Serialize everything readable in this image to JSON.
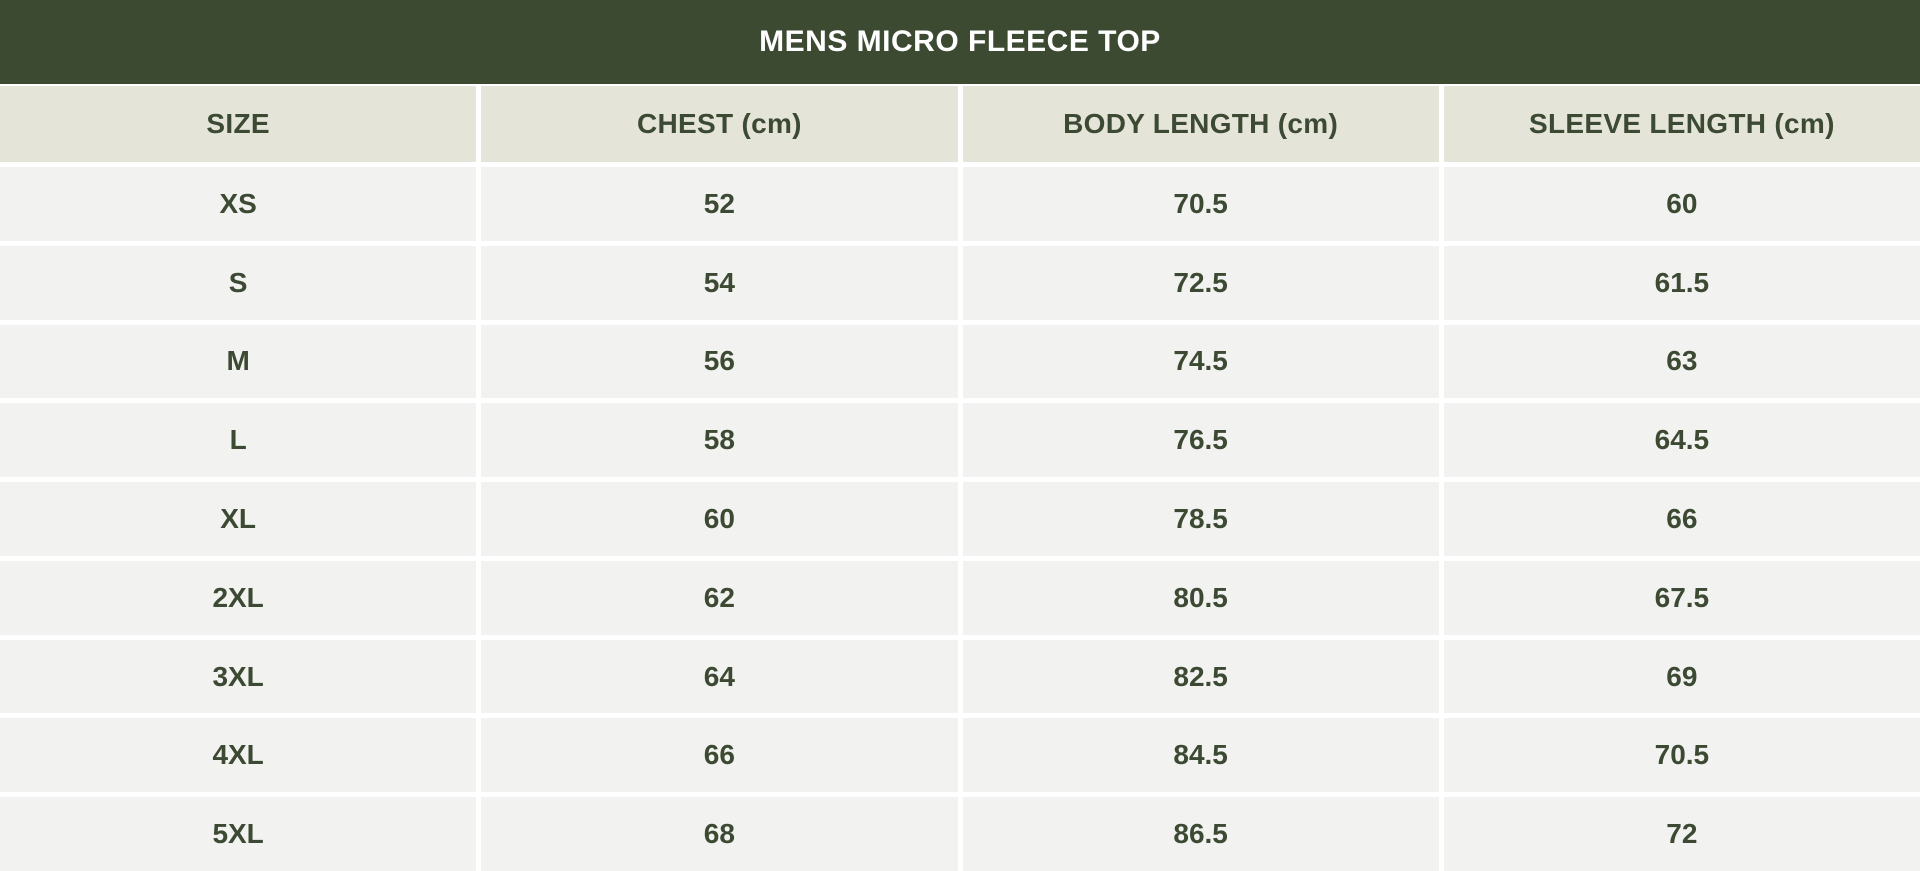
{
  "chart_data": {
    "type": "table",
    "title": "MENS MICRO FLEECE TOP",
    "columns": [
      "SIZE",
      "CHEST (cm)",
      "BODY LENGTH (cm)",
      "SLEEVE LENGTH (cm)"
    ],
    "rows": [
      [
        "XS",
        "52",
        "70.5",
        "60"
      ],
      [
        "S",
        "54",
        "72.5",
        "61.5"
      ],
      [
        "M",
        "56",
        "74.5",
        "63"
      ],
      [
        "L",
        "58",
        "76.5",
        "64.5"
      ],
      [
        "XL",
        "60",
        "78.5",
        "66"
      ],
      [
        "2XL",
        "62",
        "80.5",
        "67.5"
      ],
      [
        "3XL",
        "64",
        "82.5",
        "69"
      ],
      [
        "4XL",
        "66",
        "84.5",
        "70.5"
      ],
      [
        "5XL",
        "68",
        "86.5",
        "72"
      ]
    ]
  },
  "colors": {
    "title_bar_bg": "#3d4a32",
    "title_text": "#ffffff",
    "header_row_bg": "#e4e4d8",
    "data_row_bg": "#f2f2f0",
    "cell_text": "#3d4a33",
    "divider": "#ffffff"
  }
}
